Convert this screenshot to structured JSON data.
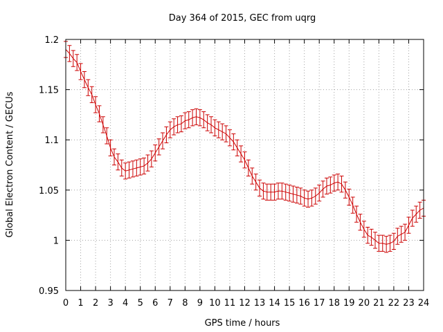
{
  "chart_data": {
    "type": "line",
    "title": "Day 364 of 2015, GEC from uqrg",
    "xlabel": "GPS time / hours",
    "ylabel": "Global Electron Content / GECUs",
    "xlim": [
      0,
      24
    ],
    "ylim": [
      0.95,
      1.2
    ],
    "xticks": [
      "0",
      "1",
      "2",
      "3",
      "4",
      "5",
      "6",
      "7",
      "8",
      "9",
      "10",
      "11",
      "12",
      "13",
      "14",
      "15",
      "16",
      "17",
      "18",
      "19",
      "20",
      "21",
      "22",
      "23",
      "24"
    ],
    "yticks": [
      "0.95",
      "1",
      "1.05",
      "1.1",
      "1.15",
      "1.2"
    ],
    "grid": true,
    "series_color": "#cc0000",
    "series": [
      {
        "x": [
          0,
          0.25,
          0.5,
          0.75,
          1,
          1.25,
          1.5,
          1.75,
          2,
          2.25,
          2.5,
          2.75,
          3,
          3.25,
          3.5,
          3.75,
          4,
          4.25,
          4.5,
          4.75,
          5,
          5.25,
          5.5,
          5.75,
          6,
          6.25,
          6.5,
          6.75,
          7,
          7.25,
          7.5,
          7.75,
          8,
          8.25,
          8.5,
          8.75,
          9,
          9.25,
          9.5,
          9.75,
          10,
          10.25,
          10.5,
          10.75,
          11,
          11.25,
          11.5,
          11.75,
          12,
          12.25,
          12.5,
          12.75,
          13,
          13.25,
          13.5,
          13.75,
          14,
          14.25,
          14.5,
          14.75,
          15,
          15.25,
          15.5,
          15.75,
          16,
          16.25,
          16.5,
          16.75,
          17,
          17.25,
          17.5,
          17.75,
          18,
          18.25,
          18.5,
          18.75,
          19,
          19.25,
          19.5,
          19.75,
          20,
          20.25,
          20.5,
          20.75,
          21,
          21.25,
          21.5,
          21.75,
          22,
          22.25,
          22.5,
          22.75,
          23,
          23.25,
          23.5,
          23.75,
          24
        ],
        "y": [
          1.19,
          1.186,
          1.181,
          1.177,
          1.168,
          1.16,
          1.152,
          1.145,
          1.135,
          1.126,
          1.115,
          1.104,
          1.092,
          1.083,
          1.078,
          1.072,
          1.069,
          1.07,
          1.071,
          1.072,
          1.073,
          1.074,
          1.077,
          1.081,
          1.087,
          1.093,
          1.099,
          1.105,
          1.11,
          1.113,
          1.115,
          1.116,
          1.119,
          1.12,
          1.122,
          1.123,
          1.122,
          1.12,
          1.117,
          1.115,
          1.112,
          1.11,
          1.108,
          1.106,
          1.102,
          1.098,
          1.092,
          1.086,
          1.08,
          1.072,
          1.064,
          1.058,
          1.052,
          1.049,
          1.048,
          1.048,
          1.048,
          1.049,
          1.049,
          1.048,
          1.047,
          1.046,
          1.045,
          1.044,
          1.042,
          1.041,
          1.042,
          1.044,
          1.047,
          1.051,
          1.054,
          1.055,
          1.057,
          1.058,
          1.056,
          1.05,
          1.043,
          1.035,
          1.026,
          1.018,
          1.011,
          1.005,
          1.003,
          1.0,
          0.997,
          0.997,
          0.996,
          0.997,
          0.999,
          1.004,
          1.006,
          1.008,
          1.015,
          1.022,
          1.026,
          1.03,
          1.032
        ],
        "err": 0.008
      }
    ]
  }
}
